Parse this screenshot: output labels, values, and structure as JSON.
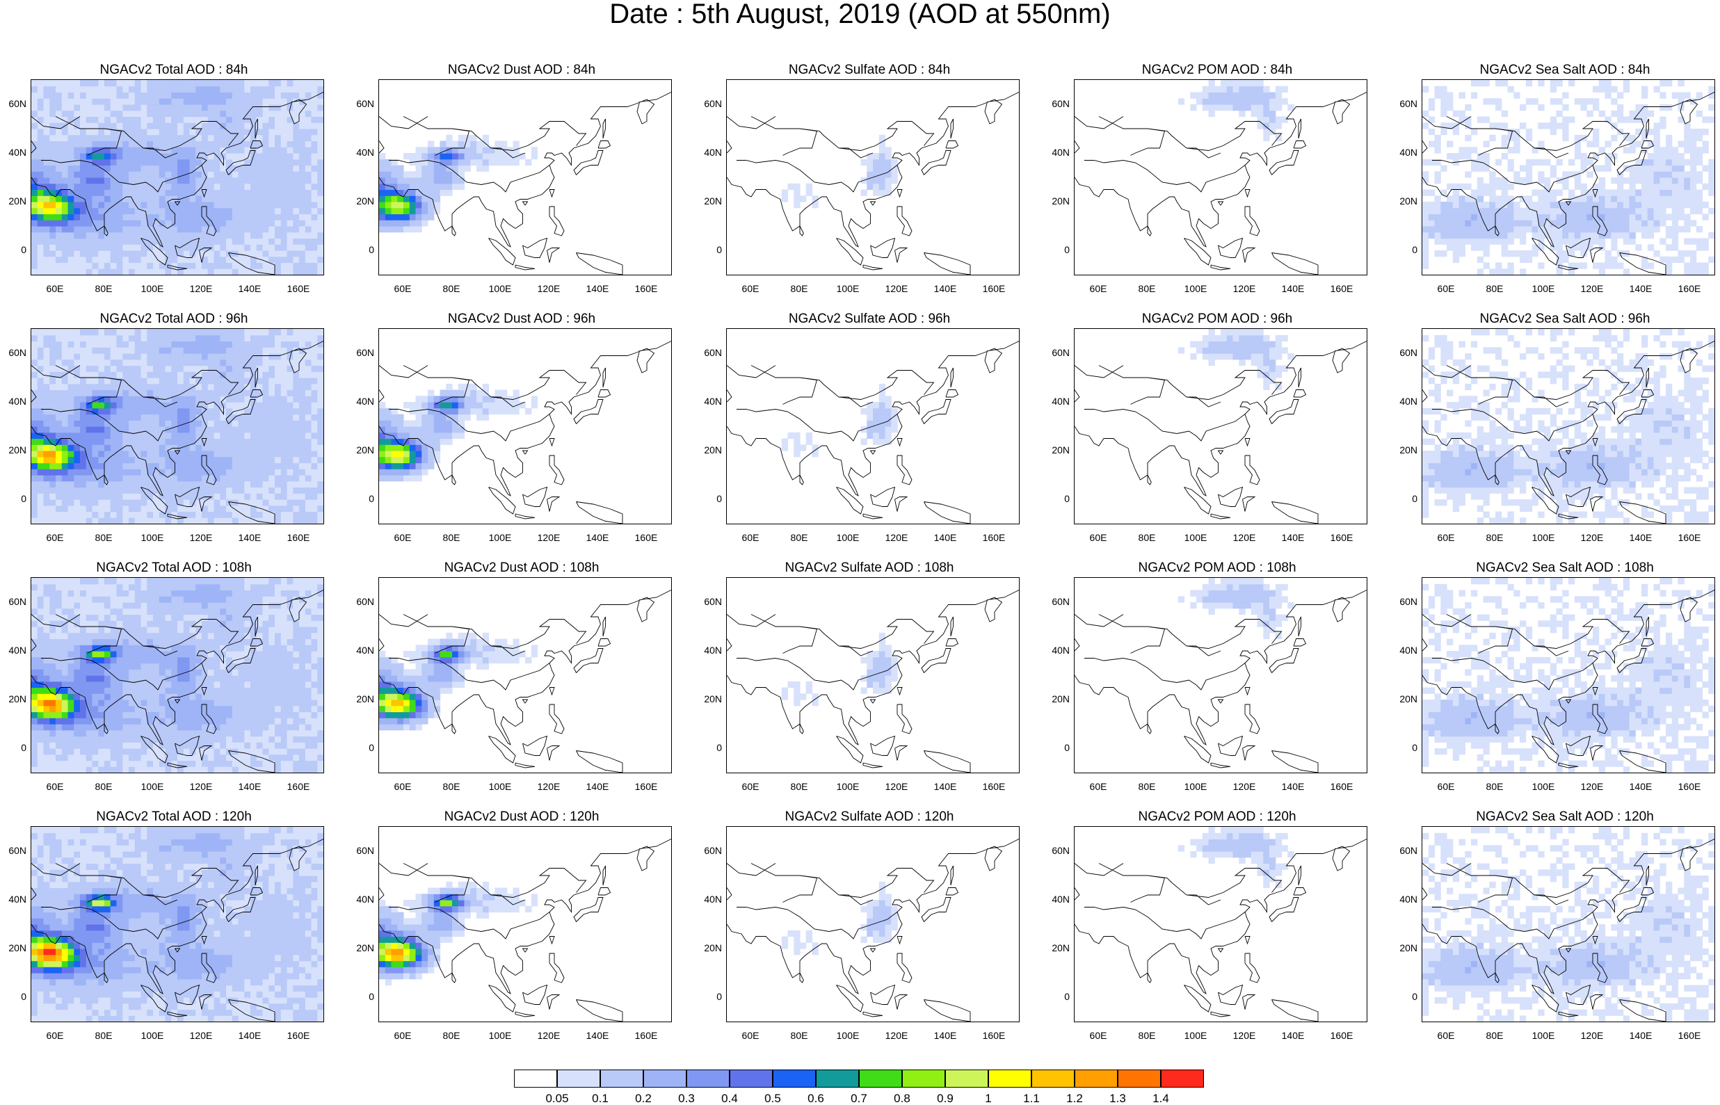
{
  "title": "Date : 5th August, 2019 (AOD at 550nm)",
  "axes": {
    "y_ticks": [
      "60N",
      "40N",
      "20N",
      "0"
    ],
    "x_ticks": [
      "60E",
      "80E",
      "100E",
      "120E",
      "140E",
      "160E"
    ],
    "lon_range": [
      50,
      170
    ],
    "lat_range": [
      -10,
      70
    ]
  },
  "panels": [
    {
      "title": "NGACv2 Total AOD : 84h",
      "species": "total"
    },
    {
      "title": "NGACv2 Dust AOD : 84h",
      "species": "dust"
    },
    {
      "title": "NGACv2 Sulfate AOD : 84h",
      "species": "sulfate"
    },
    {
      "title": "NGACv2 POM AOD : 84h",
      "species": "pom"
    },
    {
      "title": "NGACv2 Sea Salt AOD : 84h",
      "species": "seasalt"
    },
    {
      "title": "NGACv2 Total AOD : 96h",
      "species": "total"
    },
    {
      "title": "NGACv2 Dust AOD : 96h",
      "species": "dust"
    },
    {
      "title": "NGACv2 Sulfate AOD : 96h",
      "species": "sulfate"
    },
    {
      "title": "NGACv2 POM AOD : 96h",
      "species": "pom"
    },
    {
      "title": "NGACv2 Sea Salt AOD : 96h",
      "species": "seasalt"
    },
    {
      "title": "NGACv2 Total AOD : 108h",
      "species": "total"
    },
    {
      "title": "NGACv2 Dust AOD : 108h",
      "species": "dust"
    },
    {
      "title": "NGACv2 Sulfate AOD : 108h",
      "species": "sulfate"
    },
    {
      "title": "NGACv2 POM AOD : 108h",
      "species": "pom"
    },
    {
      "title": "NGACv2 Sea Salt AOD : 108h",
      "species": "seasalt"
    },
    {
      "title": "NGACv2 Total AOD : 120h",
      "species": "total"
    },
    {
      "title": "NGACv2 Dust AOD : 120h",
      "species": "dust"
    },
    {
      "title": "NGACv2 Sulfate AOD : 120h",
      "species": "sulfate"
    },
    {
      "title": "NGACv2 POM AOD : 120h",
      "species": "pom"
    },
    {
      "title": "NGACv2 Sea Salt  AOD : 120h",
      "species": "seasalt"
    }
  ],
  "colorbar": {
    "labels": [
      "0.05",
      "0.1",
      "0.2",
      "0.3",
      "0.4",
      "0.5",
      "0.6",
      "0.7",
      "0.8",
      "0.9",
      "1",
      "1.1",
      "1.2",
      "1.3",
      "1.4"
    ],
    "colors": [
      "#ffffff",
      "#d7e1fb",
      "#b9c9f8",
      "#9eb4f6",
      "#8198f2",
      "#6173ea",
      "#1b63f5",
      "#139b9b",
      "#3fdc17",
      "#91ef14",
      "#cdf55a",
      "#ffff00",
      "#ffc300",
      "#ff9f00",
      "#ff7500",
      "#ff2a1e"
    ]
  }
}
